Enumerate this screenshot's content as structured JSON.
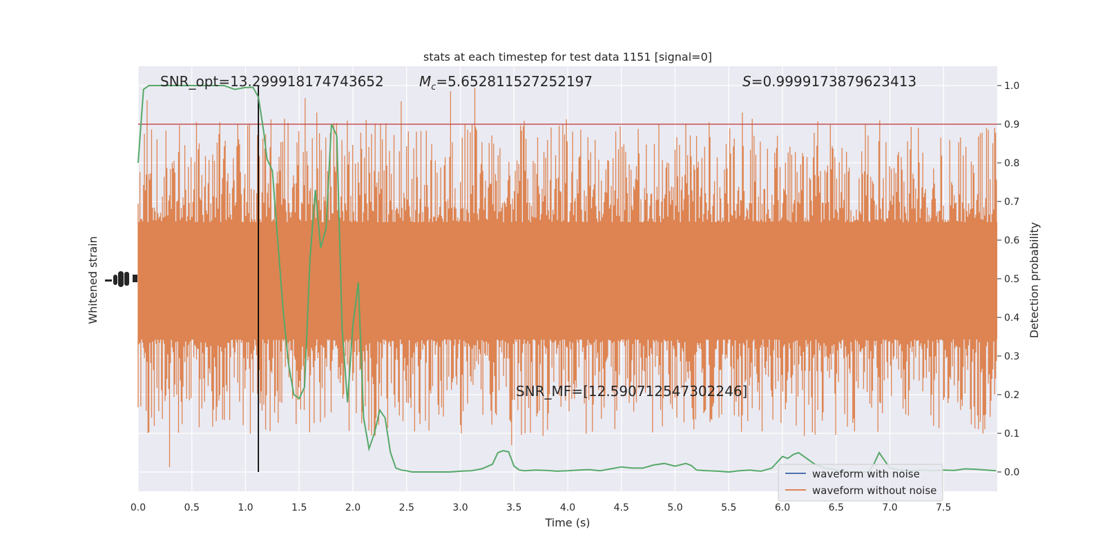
{
  "chart_data": {
    "type": "line",
    "title": "stats at each timestep for test data 1151 [signal=0]",
    "xlabel": "Time (s)",
    "ylabel_left": "Whitened strain",
    "ylabel_right": "Detection probability",
    "xlim": [
      0.0,
      8.0
    ],
    "ylim_right": [
      -0.05,
      1.05
    ],
    "x_ticks": [
      "0.0",
      "0.5",
      "1.0",
      "1.5",
      "2.0",
      "2.5",
      "3.0",
      "3.5",
      "4.0",
      "4.5",
      "5.0",
      "5.5",
      "6.0",
      "6.5",
      "7.0",
      "7.5"
    ],
    "y_ticks_right": [
      "0.0",
      "0.1",
      "0.2",
      "0.3",
      "0.4",
      "0.5",
      "0.6",
      "0.7",
      "0.8",
      "0.9",
      "1.0"
    ],
    "grid": true,
    "legend_position": "lower-right",
    "legend": [
      {
        "label": "waveform with noise",
        "color": "#4c72b0"
      },
      {
        "label": "waveform without noise",
        "color": "#dd8452"
      }
    ],
    "annotations": {
      "snr_opt": "SNR_opt=13.299918174743652",
      "mc_symbol": "M",
      "mc_sub": "c",
      "mc_value": "=5.652811527252197",
      "s_symbol": "S",
      "s_value": "=0.9999173879623413",
      "snr_mf": "SNR_MF=[12.590712547302246]"
    },
    "threshold": {
      "value": 0.9,
      "color": "#c44e52"
    },
    "vline": {
      "x": 1.12,
      "color": "#000000"
    },
    "series": [
      {
        "name": "Detection probability",
        "color": "#55a868",
        "x": [
          0.0,
          0.05,
          0.1,
          0.2,
          0.3,
          0.4,
          0.5,
          0.6,
          0.7,
          0.8,
          0.9,
          1.0,
          1.07,
          1.12,
          1.17,
          1.2,
          1.25,
          1.3,
          1.35,
          1.4,
          1.45,
          1.5,
          1.55,
          1.6,
          1.65,
          1.7,
          1.75,
          1.8,
          1.85,
          1.9,
          1.95,
          2.0,
          2.05,
          2.1,
          2.15,
          2.2,
          2.25,
          2.3,
          2.35,
          2.4,
          2.45,
          2.5,
          2.55,
          2.6,
          2.7,
          2.8,
          2.9,
          3.0,
          3.1,
          3.2,
          3.3,
          3.35,
          3.4,
          3.45,
          3.5,
          3.55,
          3.6,
          3.7,
          3.8,
          3.9,
          4.0,
          4.1,
          4.2,
          4.3,
          4.4,
          4.5,
          4.6,
          4.7,
          4.8,
          4.9,
          5.0,
          5.1,
          5.15,
          5.2,
          5.3,
          5.4,
          5.5,
          5.6,
          5.7,
          5.75,
          5.8,
          5.9,
          6.0,
          6.05,
          6.1,
          6.15,
          6.2,
          6.3,
          6.4,
          6.5,
          6.6,
          6.7,
          6.8,
          6.85,
          6.9,
          6.95,
          7.0,
          7.1,
          7.2,
          7.3,
          7.4,
          7.5,
          7.6,
          7.7,
          7.8,
          7.9,
          7.99
        ],
        "values": [
          0.8,
          0.99,
          1.0,
          1.0,
          1.0,
          1.0,
          1.0,
          1.0,
          1.0,
          1.0,
          0.99,
          0.995,
          0.995,
          0.97,
          0.88,
          0.81,
          0.78,
          0.6,
          0.42,
          0.28,
          0.2,
          0.19,
          0.22,
          0.55,
          0.73,
          0.58,
          0.63,
          0.9,
          0.87,
          0.37,
          0.18,
          0.38,
          0.49,
          0.14,
          0.06,
          0.1,
          0.16,
          0.14,
          0.05,
          0.01,
          0.005,
          0.003,
          0.0,
          0.0,
          0.0,
          0.0,
          0.0,
          0.002,
          0.003,
          0.008,
          0.02,
          0.05,
          0.055,
          0.052,
          0.015,
          0.005,
          0.003,
          0.005,
          0.004,
          0.002,
          0.003,
          0.005,
          0.006,
          0.003,
          0.008,
          0.013,
          0.01,
          0.01,
          0.018,
          0.022,
          0.015,
          0.022,
          0.017,
          0.005,
          0.003,
          0.002,
          0.0,
          0.003,
          0.005,
          0.003,
          0.002,
          0.01,
          0.04,
          0.035,
          0.045,
          0.05,
          0.04,
          0.02,
          0.01,
          0.005,
          0.0,
          0.0,
          0.0,
          0.02,
          0.05,
          0.03,
          0.01,
          0.005,
          0.003,
          0.005,
          0.003,
          0.005,
          0.004,
          0.008,
          0.007,
          0.005,
          0.003
        ]
      }
    ]
  }
}
